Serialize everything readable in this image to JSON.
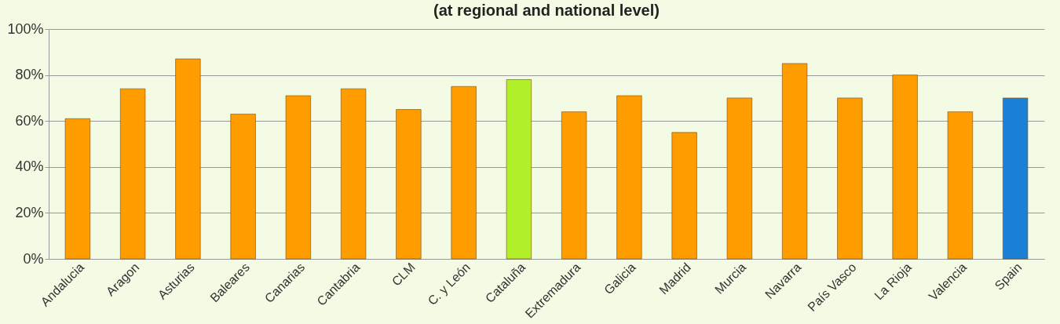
{
  "chart_data": {
    "type": "bar",
    "title": "(at regional and national level)",
    "categories": [
      "Andalucia",
      "Aragon",
      "Asturias",
      "Baleares",
      "Canarias",
      "Cantabria",
      "CLM",
      "C. y León",
      "Cataluña",
      "Extremadura",
      "Galicia",
      "Madrid",
      "Murcia",
      "Navarra",
      "País Vasco",
      "La Rioja",
      "Valencia",
      "Spain"
    ],
    "values": [
      61,
      74,
      87,
      63,
      71,
      74,
      65,
      75,
      78,
      64,
      71,
      55,
      70,
      85,
      70,
      80,
      64,
      70
    ],
    "colors": [
      "#ff9c00",
      "#ff9c00",
      "#ff9c00",
      "#ff9c00",
      "#ff9c00",
      "#ff9c00",
      "#ff9c00",
      "#ff9c00",
      "#b0ef2a",
      "#ff9c00",
      "#ff9c00",
      "#ff9c00",
      "#ff9c00",
      "#ff9c00",
      "#ff9c00",
      "#ff9c00",
      "#ff9c00",
      "#1a80d6"
    ],
    "ylim": [
      0,
      100
    ],
    "yticks": [
      {
        "value": 0,
        "label": "0%"
      },
      {
        "value": 20,
        "label": "20%"
      },
      {
        "value": 40,
        "label": "40%"
      },
      {
        "value": 60,
        "label": "60%"
      },
      {
        "value": 80,
        "label": "80%"
      },
      {
        "value": 100,
        "label": "100%"
      }
    ],
    "grid": "y"
  }
}
